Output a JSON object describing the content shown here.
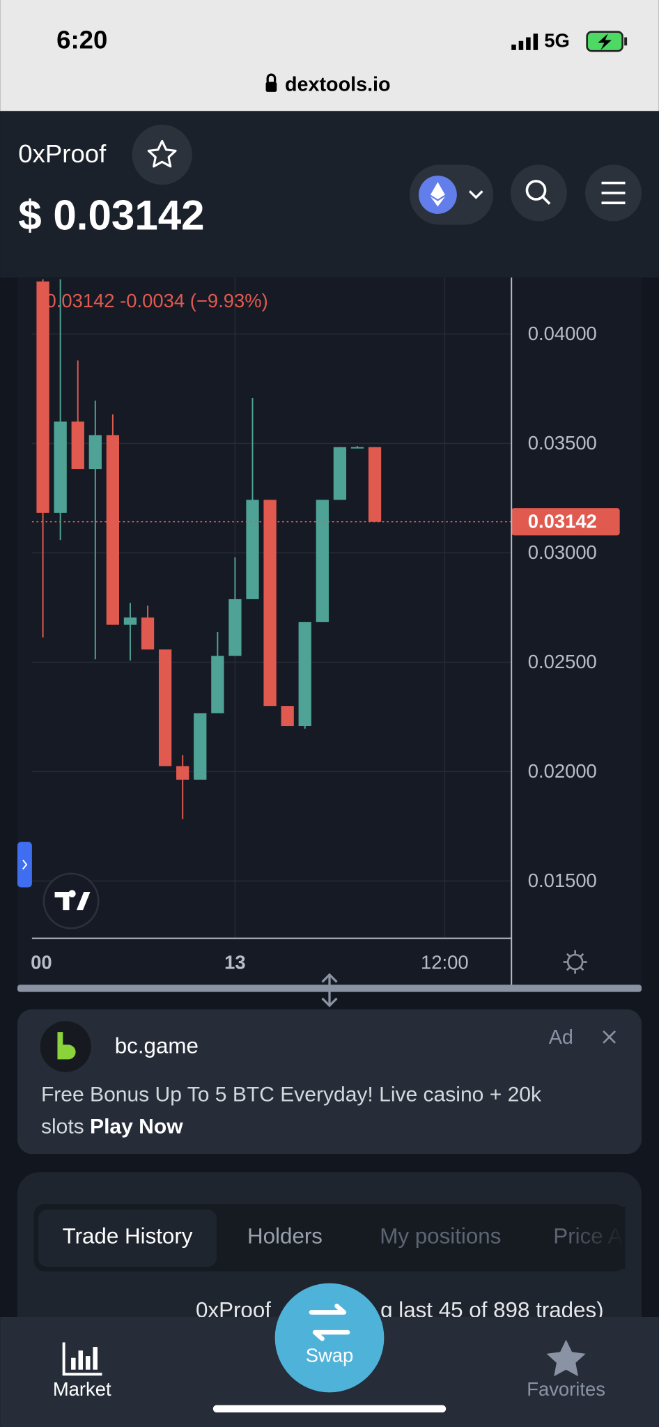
{
  "status_bar": {
    "time": "6:20",
    "network": "5G",
    "url": "dextools.io"
  },
  "header": {
    "token": "0xProof",
    "price": "$ 0.03142"
  },
  "chart_data": {
    "type": "candlestick",
    "readout": "0.03142  -0.0034 (−9.93%)",
    "categories": [
      "00",
      null,
      null,
      null,
      null,
      null,
      null,
      null,
      null,
      null,
      null,
      "13",
      null,
      null,
      null,
      null,
      null,
      null,
      null,
      null,
      null,
      null,
      null,
      "12:00"
    ],
    "open": [
      0.0424,
      0.03183,
      0.036,
      0.03383,
      0.03538,
      0.02671,
      0.02704,
      0.02558,
      0.02025,
      0.01963,
      0.02267,
      0.02529,
      0.02788,
      0.03242,
      0.023,
      0.02208,
      0.02683,
      0.03242,
      0.03483,
      0.03483,
      null,
      null,
      null,
      null
    ],
    "high": [
      0.0425,
      0.0425,
      0.03879,
      0.03696,
      0.03633,
      0.02771,
      0.02758,
      0.02558,
      0.02075,
      0.02267,
      0.02638,
      0.02979,
      0.03708,
      0.03242,
      0.023,
      0.02683,
      0.03242,
      0.03483,
      0.03488,
      0.03483,
      null,
      null,
      null,
      null
    ],
    "low": [
      0.02613,
      0.03058,
      0.03383,
      0.02513,
      0.02671,
      0.02508,
      0.02558,
      0.02025,
      0.01783,
      0.01963,
      0.02267,
      0.02529,
      0.02788,
      0.023,
      0.02208,
      0.02196,
      0.02683,
      0.03242,
      0.03479,
      0.03142,
      null,
      null,
      null,
      null
    ],
    "close": [
      0.03183,
      0.036,
      0.03383,
      0.03538,
      0.02671,
      0.02704,
      0.02558,
      0.02025,
      0.01963,
      0.02267,
      0.02529,
      0.02788,
      0.03242,
      0.023,
      0.02208,
      0.02683,
      0.03242,
      0.03483,
      0.03483,
      0.03142,
      null,
      null,
      null,
      null
    ],
    "up_color": "#4fa396",
    "down_color": "#e05a4f",
    "ylim": [
      0.01238,
      0.04258
    ],
    "yticks": [
      {
        "value": 0.015,
        "label": "0.01500"
      },
      {
        "value": 0.02,
        "label": "0.02000"
      },
      {
        "value": 0.025,
        "label": "0.02500"
      },
      {
        "value": 0.03,
        "label": "0.03000"
      },
      {
        "value": 0.035,
        "label": "0.03500"
      },
      {
        "value": 0.04,
        "label": "0.04000"
      }
    ],
    "last_price": {
      "value": 0.03142,
      "label": "0.03142"
    },
    "grid": true
  },
  "ad": {
    "brand": "bc.game",
    "tag": "Ad",
    "line1": "Free Bonus Up To 5 BTC Everyday! Live casino + 20k",
    "line2": "slots",
    "cta": "Play Now"
  },
  "tabs": [
    "Trade History",
    "Holders",
    "My positions",
    "Price A"
  ],
  "trades_note": [
    "0xProof",
    "g last 45 of 898 trades)"
  ],
  "nav": {
    "market": "Market",
    "swap": "Swap",
    "favorites": "Favorites"
  }
}
